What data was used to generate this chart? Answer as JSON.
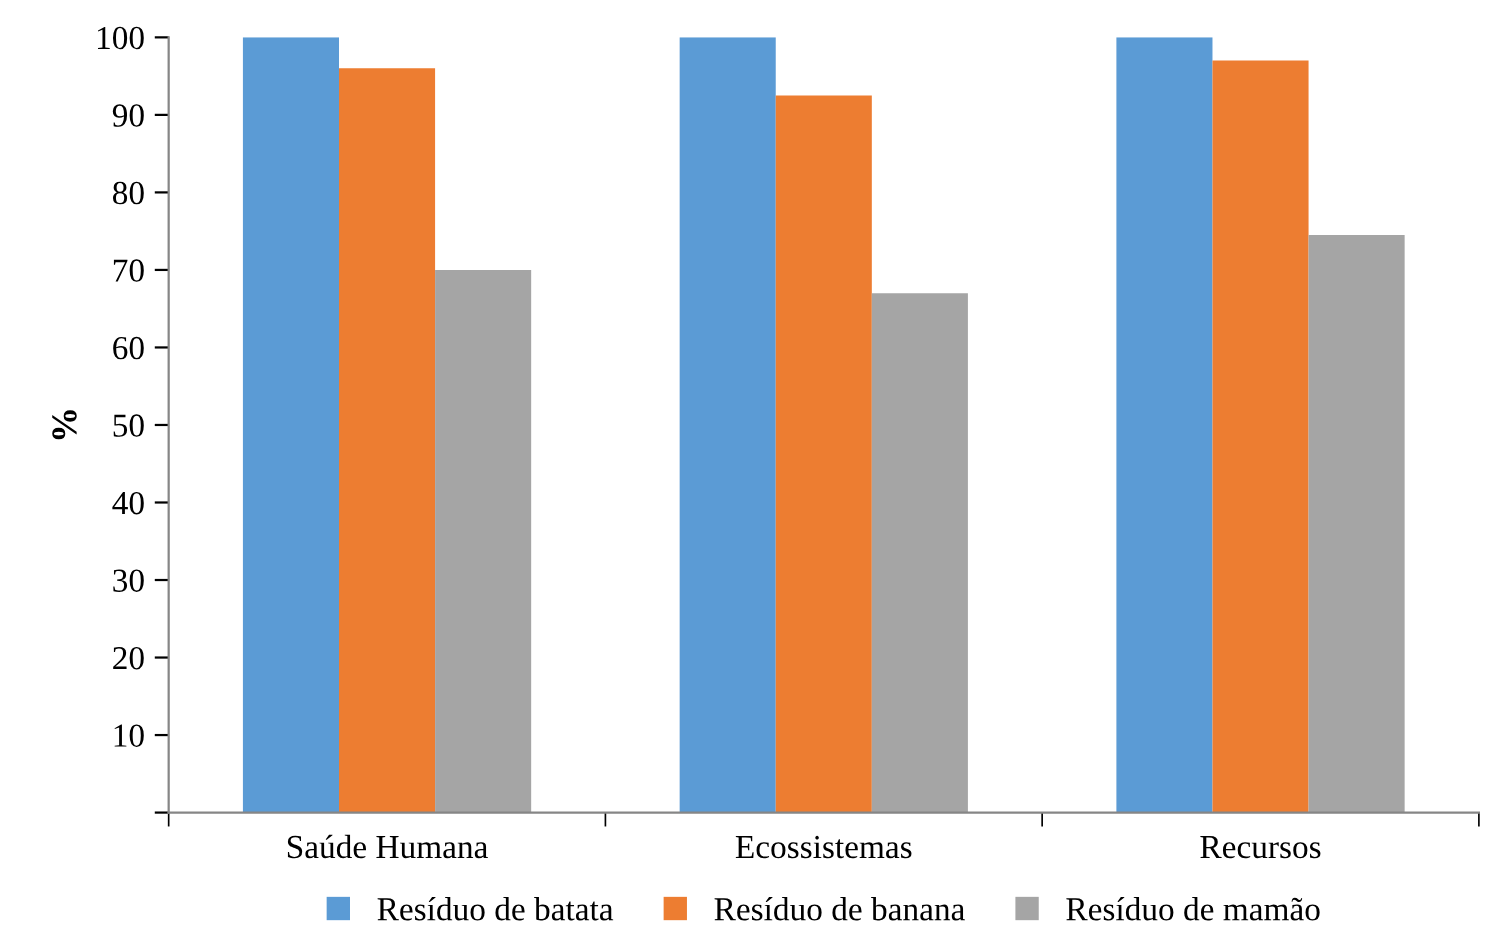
{
  "chart_data": {
    "type": "bar",
    "ylabel": "%",
    "categories": [
      "Saúde Humana",
      "Ecossistemas",
      "Recursos"
    ],
    "series": [
      {
        "name": "Resíduo de batata",
        "color": "#5b9bd5",
        "values": [
          100,
          100,
          100
        ]
      },
      {
        "name": "Resíduo de banana",
        "color": "#ed7d31",
        "values": [
          96,
          92.5,
          97
        ]
      },
      {
        "name": "Resíduo de mamão",
        "color": "#a5a5a5",
        "values": [
          70,
          67,
          74.5
        ]
      }
    ],
    "ylim": [
      0,
      100
    ],
    "yticks": [
      {
        "value": 0,
        "label": null
      },
      10,
      20,
      30,
      40,
      50,
      60,
      70,
      80,
      90,
      100
    ],
    "grid": false,
    "legend": "bottom"
  }
}
